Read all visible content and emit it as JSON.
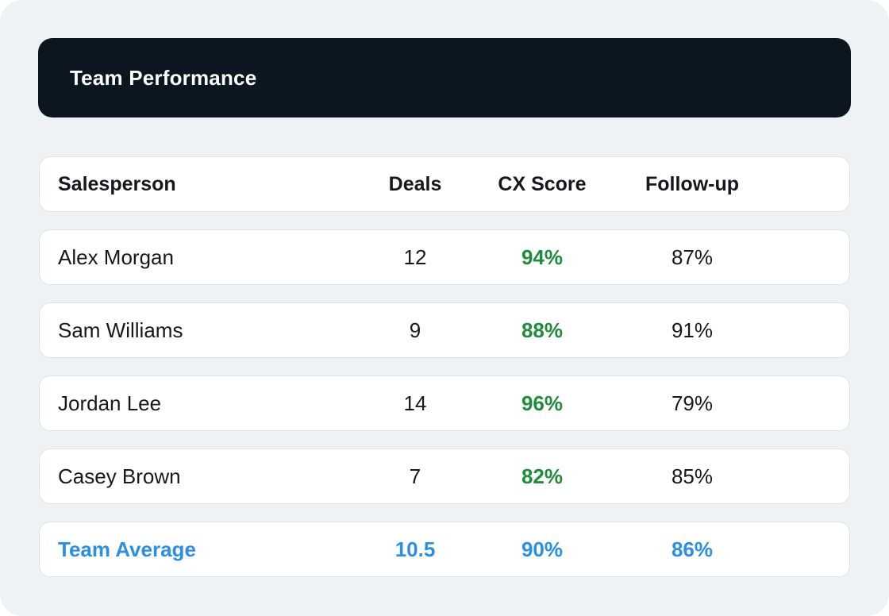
{
  "header": {
    "title": "Team Performance"
  },
  "table": {
    "columns": {
      "name": "Salesperson",
      "deals": "Deals",
      "cx": "CX Score",
      "followup": "Follow-up"
    },
    "rows": [
      {
        "name": "Alex Morgan",
        "deals": "12",
        "cx": "94%",
        "followup": "87%"
      },
      {
        "name": "Sam Williams",
        "deals": "9",
        "cx": "88%",
        "followup": "91%"
      },
      {
        "name": "Jordan Lee",
        "deals": "14",
        "cx": "96%",
        "followup": "79%"
      },
      {
        "name": "Casey Brown",
        "deals": "7",
        "cx": "82%",
        "followup": "85%"
      }
    ],
    "average": {
      "name": "Team Average",
      "deals": "10.5",
      "cx": "90%",
      "followup": "86%"
    }
  },
  "colors": {
    "header_bg": "#0b1620",
    "cx_positive": "#1f8c3b",
    "average_accent": "#2b8fe3"
  }
}
